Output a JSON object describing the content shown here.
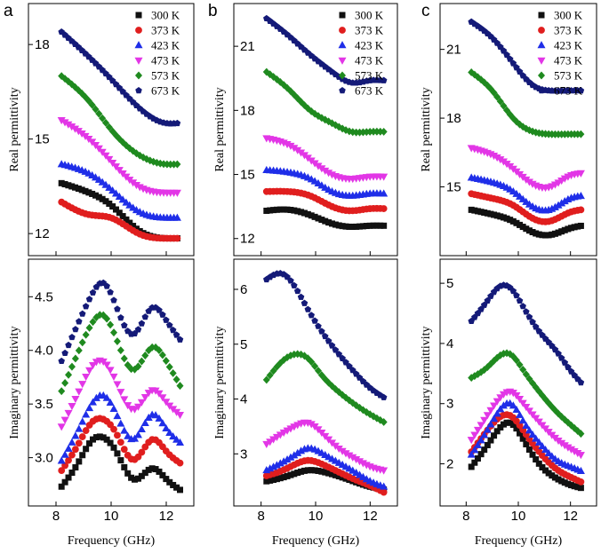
{
  "chart_data": [
    {
      "panel": "a",
      "part": "real",
      "type": "scatter",
      "xlabel": "",
      "ylabel": "Real permittivity",
      "xlim": [
        7.0,
        13.0
      ],
      "ylim": [
        11.3,
        19.3
      ],
      "yticks": [
        12,
        15,
        18
      ],
      "xticks": [
        8,
        10,
        12
      ],
      "xtick_labels": [],
      "legend": [
        "300 K",
        "373 K",
        "423 K",
        "473 K",
        "573 K",
        "673 K"
      ],
      "x": [
        8.2,
        9.2,
        10.0,
        11.0,
        12.0,
        12.4
      ],
      "series": [
        {
          "name": "300 K",
          "values": [
            13.6,
            13.3,
            12.9,
            12.1,
            11.85,
            11.85
          ]
        },
        {
          "name": "373 K",
          "values": [
            13.0,
            12.6,
            12.5,
            12.0,
            11.85,
            11.85
          ]
        },
        {
          "name": "423 K",
          "values": [
            14.2,
            13.9,
            13.4,
            12.7,
            12.5,
            12.5
          ]
        },
        {
          "name": "473 K",
          "values": [
            15.6,
            15.0,
            14.3,
            13.5,
            13.3,
            13.3
          ]
        },
        {
          "name": "573 K",
          "values": [
            17.0,
            16.2,
            15.3,
            14.5,
            14.2,
            14.2
          ]
        },
        {
          "name": "673 K",
          "values": [
            18.4,
            17.6,
            16.9,
            16.0,
            15.5,
            15.5
          ]
        }
      ]
    },
    {
      "panel": "b",
      "part": "real",
      "type": "scatter",
      "xlabel": "",
      "ylabel": "Real permittivity",
      "xlim": [
        7.0,
        13.0
      ],
      "ylim": [
        11.2,
        23.0
      ],
      "yticks": [
        12,
        15,
        18,
        21
      ],
      "xticks": [
        8,
        10,
        12
      ],
      "xtick_labels": [],
      "legend": [
        "300 K",
        "373 K",
        "423 K",
        "473 K",
        "573 K",
        "673 K"
      ],
      "x": [
        8.2,
        9.0,
        9.8,
        10.6,
        11.3,
        12.0,
        12.5
      ],
      "series": [
        {
          "name": "300 K",
          "values": [
            13.3,
            13.35,
            13.1,
            12.7,
            12.55,
            12.6,
            12.6
          ]
        },
        {
          "name": "373 K",
          "values": [
            14.2,
            14.2,
            14.0,
            13.5,
            13.3,
            13.4,
            13.4
          ]
        },
        {
          "name": "423 K",
          "values": [
            15.2,
            15.1,
            14.8,
            14.2,
            14.0,
            14.1,
            14.1
          ]
        },
        {
          "name": "473 K",
          "values": [
            16.7,
            16.4,
            15.7,
            15.0,
            14.8,
            14.9,
            14.9
          ]
        },
        {
          "name": "573 K",
          "values": [
            19.8,
            19.0,
            18.0,
            17.4,
            17.0,
            17.0,
            17.0
          ]
        },
        {
          "name": "673 K",
          "values": [
            22.3,
            21.5,
            20.6,
            19.8,
            19.3,
            19.4,
            19.4
          ]
        }
      ]
    },
    {
      "panel": "c",
      "part": "real",
      "type": "scatter",
      "xlabel": "",
      "ylabel": "Real permittivity",
      "xlim": [
        7.0,
        13.0
      ],
      "ylim": [
        12.0,
        23.0
      ],
      "yticks": [
        15,
        18,
        21
      ],
      "xticks": [
        8,
        10,
        12
      ],
      "xtick_labels": [],
      "legend": [
        "300 K",
        "373 K",
        "423 K",
        "473 K",
        "573 K",
        "673 K"
      ],
      "x": [
        8.2,
        9.0,
        9.8,
        10.6,
        11.2,
        12.0,
        12.4
      ],
      "series": [
        {
          "name": "300 K",
          "values": [
            14.0,
            13.8,
            13.5,
            13.0,
            12.9,
            13.2,
            13.3
          ]
        },
        {
          "name": "373 K",
          "values": [
            14.7,
            14.5,
            14.2,
            13.6,
            13.5,
            13.9,
            14.0
          ]
        },
        {
          "name": "423 K",
          "values": [
            15.4,
            15.2,
            14.8,
            14.1,
            14.0,
            14.5,
            14.6
          ]
        },
        {
          "name": "473 K",
          "values": [
            16.7,
            16.4,
            15.8,
            15.1,
            15.0,
            15.5,
            15.6
          ]
        },
        {
          "name": "573 K",
          "values": [
            20.0,
            19.2,
            18.0,
            17.4,
            17.3,
            17.3,
            17.3
          ]
        },
        {
          "name": "673 K",
          "values": [
            22.2,
            21.5,
            20.4,
            19.4,
            19.2,
            19.2,
            19.2
          ]
        }
      ]
    },
    {
      "panel": "a",
      "part": "imaginary",
      "type": "scatter",
      "xlabel": "Frequency (GHz)",
      "ylabel": "Imaginary permittivity",
      "xlim": [
        7.0,
        13.0
      ],
      "ylim": [
        2.55,
        4.85
      ],
      "yticks": [
        3.0,
        3.5,
        4.0,
        4.5
      ],
      "xticks": [
        8,
        10,
        12
      ],
      "xtick_labels": [
        "8",
        "10",
        "12"
      ],
      "x": [
        8.2,
        8.8,
        9.3,
        9.7,
        10.2,
        10.8,
        11.5,
        12.0,
        12.5
      ],
      "series": [
        {
          "name": "300 K",
          "values": [
            2.73,
            2.95,
            3.16,
            3.19,
            3.05,
            2.8,
            2.9,
            2.8,
            2.7
          ]
        },
        {
          "name": "373 K",
          "values": [
            2.88,
            3.12,
            3.33,
            3.36,
            3.22,
            2.98,
            3.17,
            3.06,
            2.95
          ]
        },
        {
          "name": "423 K",
          "values": [
            2.97,
            3.25,
            3.5,
            3.58,
            3.4,
            3.17,
            3.4,
            3.27,
            3.14
          ]
        },
        {
          "name": "473 K",
          "values": [
            3.29,
            3.6,
            3.85,
            3.9,
            3.7,
            3.45,
            3.63,
            3.52,
            3.4
          ]
        },
        {
          "name": "573 K",
          "values": [
            3.62,
            3.98,
            4.25,
            4.33,
            4.1,
            3.82,
            4.03,
            3.9,
            3.67
          ]
        },
        {
          "name": "673 K",
          "values": [
            3.9,
            4.25,
            4.52,
            4.63,
            4.4,
            4.15,
            4.4,
            4.28,
            4.1
          ]
        }
      ]
    },
    {
      "panel": "b",
      "part": "imaginary",
      "type": "scatter",
      "xlabel": "Frequency (GHz)",
      "ylabel": "Imaginary permittivity",
      "xlim": [
        7.0,
        13.0
      ],
      "ylim": [
        2.05,
        6.55
      ],
      "yticks": [
        3,
        4,
        5,
        6
      ],
      "xticks": [
        8,
        10,
        12
      ],
      "xtick_labels": [
        "8",
        "10",
        "12"
      ],
      "x": [
        8.2,
        8.8,
        9.3,
        9.7,
        10.2,
        10.8,
        11.5,
        12.0,
        12.5
      ],
      "series": [
        {
          "name": "300 K",
          "values": [
            2.5,
            2.57,
            2.65,
            2.7,
            2.68,
            2.6,
            2.48,
            2.4,
            2.35
          ]
        },
        {
          "name": "373 K",
          "values": [
            2.6,
            2.7,
            2.82,
            2.88,
            2.82,
            2.68,
            2.52,
            2.42,
            2.3
          ]
        },
        {
          "name": "423 K",
          "values": [
            2.7,
            2.85,
            3.0,
            3.1,
            3.02,
            2.85,
            2.65,
            2.5,
            2.4
          ]
        },
        {
          "name": "473 K",
          "values": [
            3.18,
            3.38,
            3.52,
            3.57,
            3.4,
            3.12,
            2.9,
            2.77,
            2.7
          ]
        },
        {
          "name": "573 K",
          "values": [
            4.35,
            4.7,
            4.82,
            4.75,
            4.45,
            4.15,
            3.88,
            3.72,
            3.58
          ]
        },
        {
          "name": "673 K",
          "values": [
            6.18,
            6.28,
            6.0,
            5.65,
            5.25,
            4.85,
            4.45,
            4.2,
            4.03
          ]
        }
      ]
    },
    {
      "panel": "c",
      "part": "imaginary",
      "type": "scatter",
      "xlabel": "Frequency (GHz)",
      "ylabel": "Imaginary permittivity",
      "xlim": [
        7.0,
        13.0
      ],
      "ylim": [
        1.3,
        5.4
      ],
      "yticks": [
        2,
        3,
        4,
        5
      ],
      "xticks": [
        8,
        10,
        12
      ],
      "xtick_labels": [
        "8",
        "10",
        "12"
      ],
      "x": [
        8.2,
        8.8,
        9.3,
        9.7,
        10.2,
        10.8,
        11.5,
        12.0,
        12.4
      ],
      "series": [
        {
          "name": "300 K",
          "values": [
            1.95,
            2.3,
            2.6,
            2.68,
            2.4,
            2.0,
            1.75,
            1.65,
            1.6
          ]
        },
        {
          "name": "373 K",
          "values": [
            2.2,
            2.55,
            2.78,
            2.8,
            2.55,
            2.2,
            1.9,
            1.78,
            1.7
          ]
        },
        {
          "name": "423 K",
          "values": [
            2.15,
            2.55,
            2.9,
            3.0,
            2.7,
            2.35,
            2.05,
            1.95,
            1.88
          ]
        },
        {
          "name": "473 K",
          "values": [
            2.4,
            2.8,
            3.1,
            3.2,
            3.0,
            2.7,
            2.4,
            2.25,
            2.15
          ]
        },
        {
          "name": "573 K",
          "values": [
            3.43,
            3.6,
            3.8,
            3.82,
            3.55,
            3.2,
            2.85,
            2.65,
            2.5
          ]
        },
        {
          "name": "673 K",
          "values": [
            4.37,
            4.7,
            4.95,
            4.92,
            4.6,
            4.2,
            3.85,
            3.55,
            3.35
          ]
        }
      ]
    }
  ],
  "series_colors": [
    "#111111",
    "#e01e1e",
    "#1f2ee8",
    "#e236e6",
    "#1f8a1f",
    "#141a78"
  ],
  "series_markers": [
    "square",
    "circle",
    "triangle-up",
    "triangle-down",
    "diamond",
    "pentagon"
  ],
  "panel_letters": [
    "a",
    "b",
    "c"
  ]
}
